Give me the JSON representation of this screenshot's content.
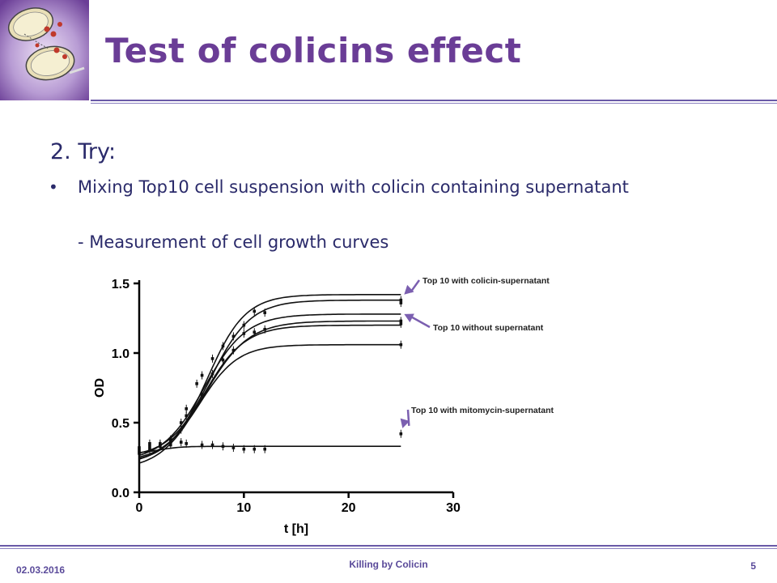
{
  "slide": {
    "title": "Test of colicins effect",
    "heading": "2. Try:",
    "bullet_symbol": "•",
    "bullet": "Mixing Top10 cell suspension with colicin containing supernatant",
    "subitem": "- Measurement of cell growth curves"
  },
  "footer": {
    "date": "02.03.2016",
    "center": "Killing by Colicin",
    "page": "5"
  },
  "colors": {
    "accent": "#6a3d96",
    "arrow": "#7b5fb0",
    "text": "#2a2a6a"
  },
  "chart_data": {
    "type": "line",
    "xlabel": "t [h]",
    "ylabel": "OD",
    "xlim": [
      0,
      30
    ],
    "ylim": [
      0,
      1.5
    ],
    "xticks": [
      0,
      10,
      20,
      30
    ],
    "yticks": [
      0.0,
      0.5,
      1.0,
      1.5
    ],
    "xtick_labels": [
      "0",
      "10",
      "20",
      "30"
    ],
    "ytick_labels": [
      "0.0",
      "0.5",
      "1.0",
      "1.5"
    ],
    "series": [
      {
        "plateau": 1.42,
        "start": 0.21,
        "midpoint": 6.5,
        "rate": 0.55
      },
      {
        "plateau": 1.38,
        "start": 0.25,
        "midpoint": 6.8,
        "rate": 0.52
      },
      {
        "plateau": 1.28,
        "start": 0.22,
        "midpoint": 6.2,
        "rate": 0.5
      },
      {
        "plateau": 1.23,
        "start": 0.19,
        "midpoint": 6.3,
        "rate": 0.48
      },
      {
        "plateau": 1.2,
        "start": 0.16,
        "midpoint": 6.0,
        "rate": 0.5
      },
      {
        "plateau": 1.06,
        "start": 0.22,
        "midpoint": 5.8,
        "rate": 0.55
      },
      {
        "plateau": 0.33,
        "start": 0.28,
        "midpoint": 2.0,
        "rate": 1.0,
        "flat": true
      }
    ],
    "points": [
      {
        "x": 0,
        "y": 0.28
      },
      {
        "x": 0,
        "y": 0.3
      },
      {
        "x": 1,
        "y": 0.31
      },
      {
        "x": 1,
        "y": 0.33
      },
      {
        "x": 2,
        "y": 0.33
      },
      {
        "x": 2,
        "y": 0.35
      },
      {
        "x": 3,
        "y": 0.36
      },
      {
        "x": 3,
        "y": 0.38
      },
      {
        "x": 4,
        "y": 0.45
      },
      {
        "x": 4,
        "y": 0.5
      },
      {
        "x": 4.5,
        "y": 0.55
      },
      {
        "x": 4.5,
        "y": 0.6
      },
      {
        "x": 5.5,
        "y": 0.78
      },
      {
        "x": 6,
        "y": 0.84
      },
      {
        "x": 6,
        "y": 0.7
      },
      {
        "x": 7,
        "y": 0.85
      },
      {
        "x": 7,
        "y": 0.96
      },
      {
        "x": 8,
        "y": 0.95
      },
      {
        "x": 8,
        "y": 1.05
      },
      {
        "x": 9,
        "y": 1.12
      },
      {
        "x": 9,
        "y": 1.02
      },
      {
        "x": 10,
        "y": 1.14
      },
      {
        "x": 10,
        "y": 1.2
      },
      {
        "x": 11,
        "y": 1.3
      },
      {
        "x": 11,
        "y": 1.15
      },
      {
        "x": 12,
        "y": 1.29
      },
      {
        "x": 12,
        "y": 1.17
      },
      {
        "x": 25,
        "y": 1.38
      },
      {
        "x": 25,
        "y": 1.36
      },
      {
        "x": 25,
        "y": 1.23
      },
      {
        "x": 25,
        "y": 1.21
      },
      {
        "x": 25,
        "y": 1.06
      },
      {
        "x": 25,
        "y": 0.42
      },
      {
        "x": 0,
        "y": 0.32
      },
      {
        "x": 1,
        "y": 0.35
      },
      {
        "x": 2,
        "y": 0.34
      },
      {
        "x": 3,
        "y": 0.34
      },
      {
        "x": 4,
        "y": 0.36
      },
      {
        "x": 4.5,
        "y": 0.35
      },
      {
        "x": 6,
        "y": 0.34
      },
      {
        "x": 7,
        "y": 0.34
      },
      {
        "x": 8,
        "y": 0.33
      },
      {
        "x": 9,
        "y": 0.32
      },
      {
        "x": 10,
        "y": 0.31
      },
      {
        "x": 11,
        "y": 0.31
      },
      {
        "x": 12,
        "y": 0.31
      }
    ],
    "annotations": [
      {
        "text": "Top 10 with colicin-supernatant",
        "target_x": 25,
        "target_y": 1.42
      },
      {
        "text": "Top 10 without supernatant",
        "target_x": 25,
        "target_y": 1.28
      },
      {
        "text": "Top 10 with mitomycin-supernatant",
        "target_x": 25,
        "target_y": 0.42
      }
    ]
  }
}
